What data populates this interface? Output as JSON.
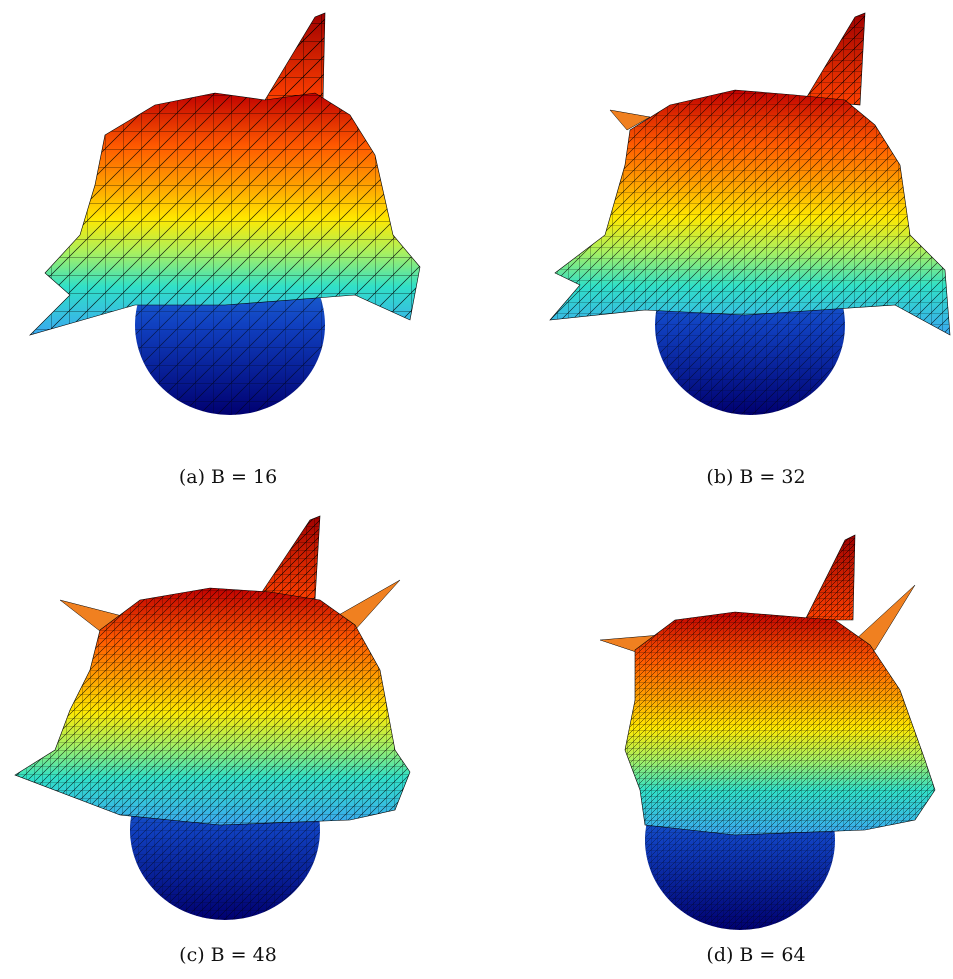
{
  "figure": {
    "panels": [
      {
        "caption": "(a) B = 16"
      },
      {
        "caption": "(b) B = 32"
      },
      {
        "caption": "(c) B = 48"
      },
      {
        "caption": "(d) B = 64"
      }
    ]
  }
}
